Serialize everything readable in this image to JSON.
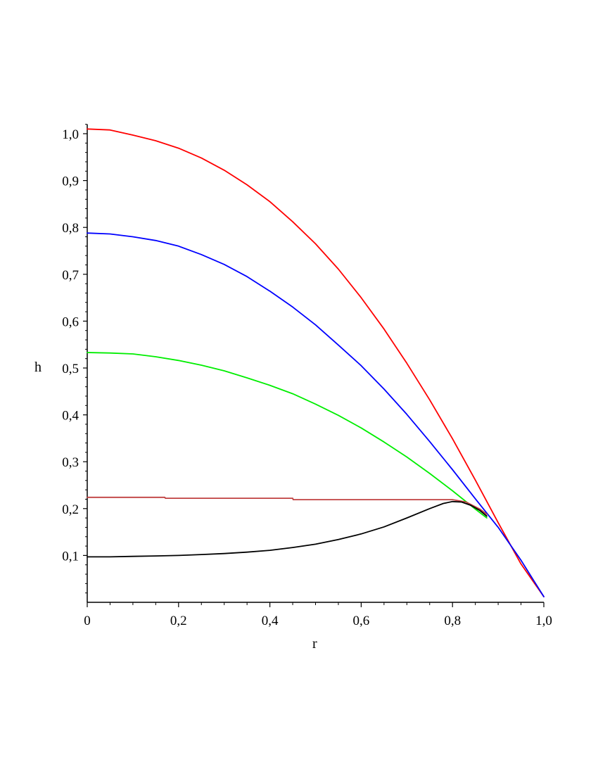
{
  "chart_data": {
    "type": "line",
    "title": "",
    "xlabel": "r",
    "ylabel": "h",
    "xlim": [
      0,
      1.0
    ],
    "ylim": [
      0.0,
      1.02
    ],
    "grid": false,
    "legend": "none",
    "xticks": [
      {
        "value": 0.0,
        "label": "0"
      },
      {
        "value": 0.2,
        "label": "0,2"
      },
      {
        "value": 0.4,
        "label": "0,4"
      },
      {
        "value": 0.6,
        "label": "0,6"
      },
      {
        "value": 0.8,
        "label": "0,8"
      },
      {
        "value": 1.0,
        "label": "1,0"
      }
    ],
    "yticks": [
      {
        "value": 0.1,
        "label": "0,1"
      },
      {
        "value": 0.2,
        "label": "0,2"
      },
      {
        "value": 0.3,
        "label": "0,3"
      },
      {
        "value": 0.4,
        "label": "0,4"
      },
      {
        "value": 0.5,
        "label": "0,5"
      },
      {
        "value": 0.6,
        "label": "0,6"
      },
      {
        "value": 0.7,
        "label": "0,7"
      },
      {
        "value": 0.8,
        "label": "0,8"
      },
      {
        "value": 0.9,
        "label": "0,9"
      },
      {
        "value": 1.0,
        "label": "1,0"
      }
    ],
    "series": [
      {
        "color": "#ff0000",
        "x": [
          0,
          0.05,
          0.1,
          0.15,
          0.2,
          0.25,
          0.3,
          0.35,
          0.4,
          0.45,
          0.5,
          0.55,
          0.6,
          0.65,
          0.7,
          0.75,
          0.8,
          0.85,
          0.9,
          0.95,
          1.0
        ],
        "y": [
          1.01,
          1.008,
          0.997,
          0.985,
          0.969,
          0.948,
          0.922,
          0.891,
          0.855,
          0.812,
          0.765,
          0.711,
          0.65,
          0.583,
          0.51,
          0.432,
          0.349,
          0.261,
          0.17,
          0.082,
          0.012
        ]
      },
      {
        "color": "#0000ff",
        "x": [
          0,
          0.05,
          0.1,
          0.15,
          0.2,
          0.25,
          0.3,
          0.35,
          0.4,
          0.45,
          0.5,
          0.55,
          0.6,
          0.65,
          0.7,
          0.75,
          0.8,
          0.85,
          0.9,
          0.95,
          1.0
        ],
        "y": [
          0.788,
          0.786,
          0.78,
          0.772,
          0.76,
          0.742,
          0.721,
          0.695,
          0.664,
          0.63,
          0.592,
          0.549,
          0.505,
          0.455,
          0.401,
          0.343,
          0.283,
          0.221,
          0.16,
          0.09,
          0.012
        ]
      },
      {
        "color": "#00ee00",
        "x": [
          0,
          0.05,
          0.1,
          0.15,
          0.2,
          0.25,
          0.3,
          0.35,
          0.4,
          0.45,
          0.5,
          0.55,
          0.6,
          0.65,
          0.7,
          0.75,
          0.8,
          0.85,
          0.875
        ],
        "y": [
          0.533,
          0.532,
          0.53,
          0.524,
          0.516,
          0.506,
          0.494,
          0.479,
          0.463,
          0.445,
          0.423,
          0.399,
          0.372,
          0.342,
          0.31,
          0.275,
          0.238,
          0.199,
          0.18
        ]
      },
      {
        "color": "#c04040",
        "x": [
          0,
          0.17,
          0.171,
          0.45,
          0.451,
          0.8,
          0.83,
          0.86,
          0.875
        ],
        "y": [
          0.224,
          0.224,
          0.222,
          0.222,
          0.219,
          0.219,
          0.214,
          0.199,
          0.188
        ]
      },
      {
        "color": "#000000",
        "x": [
          0,
          0.05,
          0.1,
          0.15,
          0.2,
          0.25,
          0.3,
          0.35,
          0.4,
          0.45,
          0.5,
          0.55,
          0.6,
          0.65,
          0.7,
          0.75,
          0.78,
          0.8,
          0.82,
          0.84,
          0.86,
          0.875
        ],
        "y": [
          0.097,
          0.097,
          0.098,
          0.099,
          0.1,
          0.102,
          0.104,
          0.107,
          0.111,
          0.117,
          0.124,
          0.134,
          0.146,
          0.161,
          0.18,
          0.2,
          0.211,
          0.215,
          0.214,
          0.207,
          0.196,
          0.184
        ]
      }
    ]
  }
}
